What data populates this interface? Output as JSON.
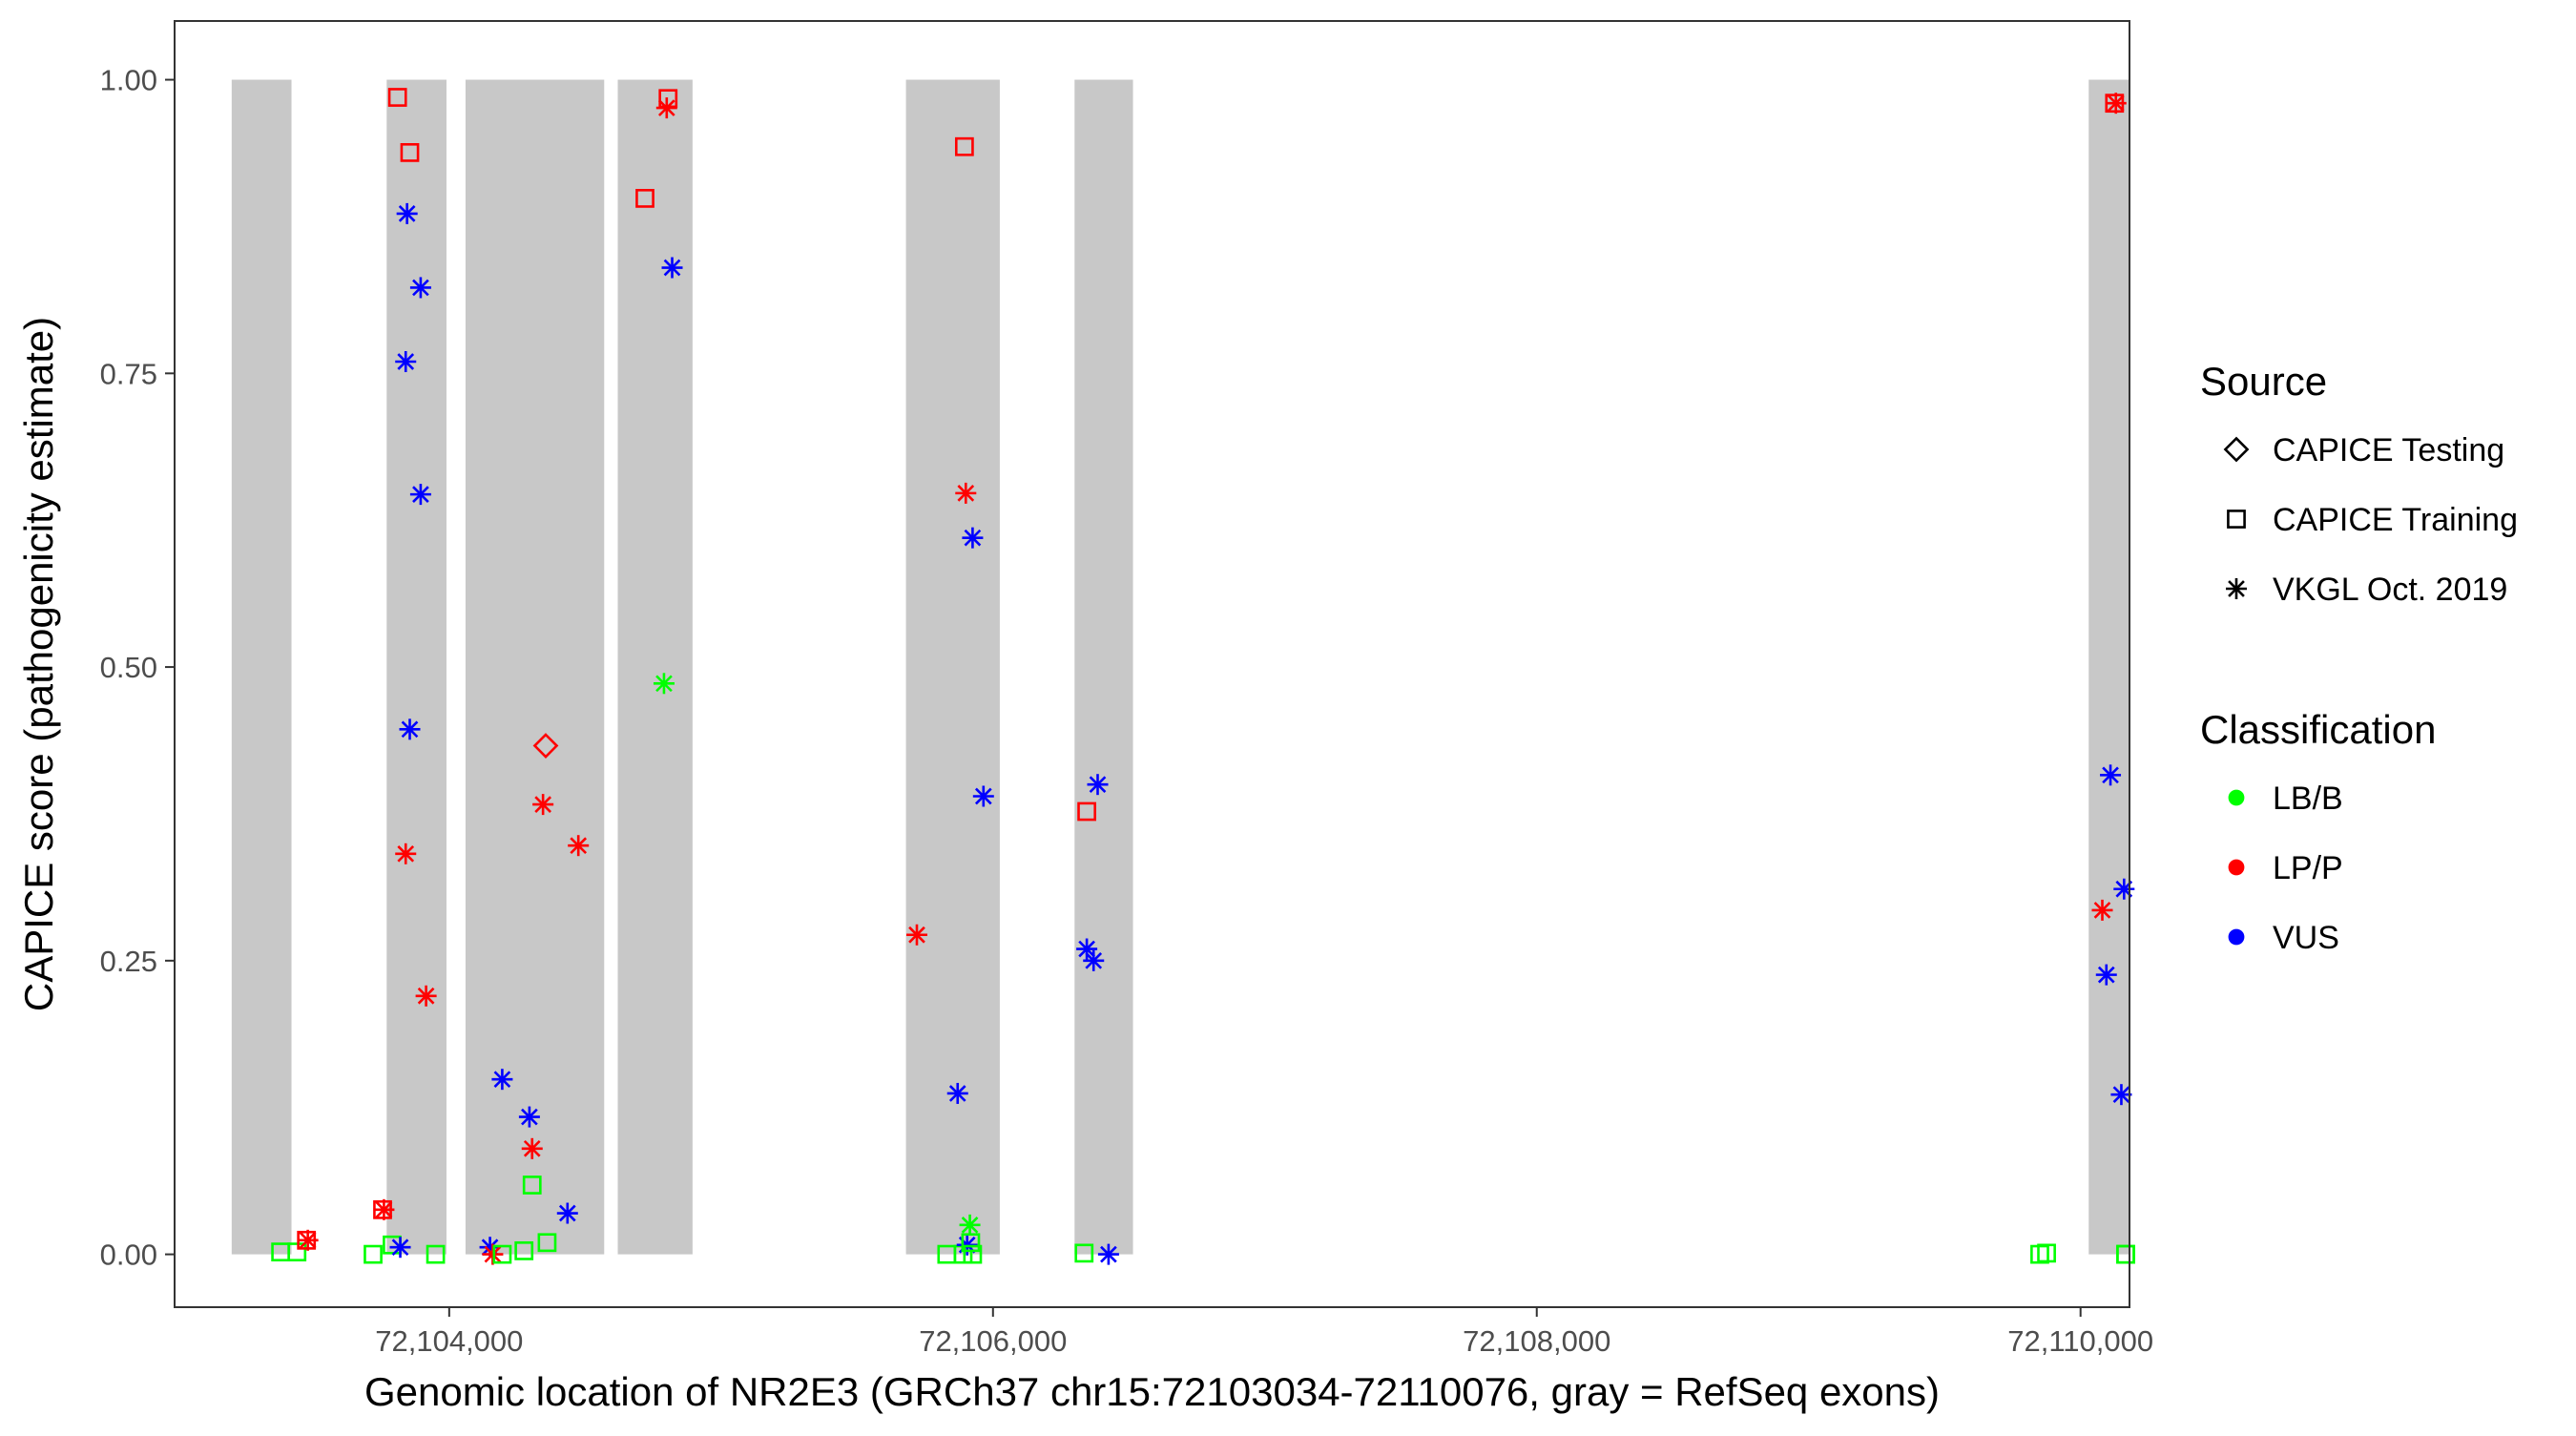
{
  "chart_data": {
    "type": "scatter",
    "xlabel": "Genomic location of NR2E3 (GRCh37 chr15:72103034-72110076, gray = RefSeq exons)",
    "ylabel": "CAPICE score (pathogenicity estimate)",
    "xlim": [
      72102990,
      72110180
    ],
    "ylim": [
      -0.045,
      1.05
    ],
    "x_ticks": [
      72104000,
      72106000,
      72108000,
      72110000
    ],
    "x_tick_labels": [
      "72,104,000",
      "72,106,000",
      "72,108,000",
      "72,110,000"
    ],
    "y_ticks": [
      0,
      0.25,
      0.5,
      0.75,
      1.0
    ],
    "y_tick_labels": [
      "0.00",
      "0.25",
      "0.50",
      "0.75",
      "1.00"
    ],
    "grid": false,
    "background_bands": [
      {
        "x_start": 72103200,
        "x_end": 72103420
      },
      {
        "x_start": 72103770,
        "x_end": 72103990
      },
      {
        "x_start": 72104060,
        "x_end": 72104570
      },
      {
        "x_start": 72104620,
        "x_end": 72104895
      },
      {
        "x_start": 72105680,
        "x_end": 72106025
      },
      {
        "x_start": 72106300,
        "x_end": 72106515
      },
      {
        "x_start": 72110030,
        "x_end": 72110270
      }
    ],
    "band_y_range": [
      0,
      1.0
    ],
    "band_color": "#c8c8c8",
    "legends": [
      {
        "title": "Source",
        "entries": [
          {
            "label": "CAPICE Testing",
            "shape": "diamond"
          },
          {
            "label": "CAPICE Training",
            "shape": "square"
          },
          {
            "label": "VKGL Oct. 2019",
            "shape": "asterisk"
          }
        ]
      },
      {
        "title": "Classification",
        "entries": [
          {
            "label": "LB/B",
            "color": "#00ff00"
          },
          {
            "label": "LP/P",
            "color": "#ff0000"
          },
          {
            "label": "VUS",
            "color": "#0000ff"
          }
        ]
      }
    ],
    "legend_position": "right",
    "class_colors": {
      "LB/B": "#00ff00",
      "LP/P": "#ff0000",
      "VUS": "#0000ff"
    },
    "points": [
      {
        "x": 72103380,
        "y": 0.002,
        "shape": "square",
        "cls": "LB/B"
      },
      {
        "x": 72103440,
        "y": 0.002,
        "shape": "square",
        "cls": "LB/B"
      },
      {
        "x": 72103480,
        "y": 0.012,
        "shape": "asterisk",
        "cls": "LP/P"
      },
      {
        "x": 72103475,
        "y": 0.012,
        "shape": "square",
        "cls": "LP/P"
      },
      {
        "x": 72103720,
        "y": 0.0,
        "shape": "square",
        "cls": "LB/B"
      },
      {
        "x": 72103755,
        "y": 0.038,
        "shape": "square",
        "cls": "LP/P"
      },
      {
        "x": 72103760,
        "y": 0.038,
        "shape": "asterisk",
        "cls": "LP/P"
      },
      {
        "x": 72103790,
        "y": 0.008,
        "shape": "square",
        "cls": "LB/B"
      },
      {
        "x": 72103810,
        "y": 0.985,
        "shape": "square",
        "cls": "LP/P"
      },
      {
        "x": 72103820,
        "y": 0.006,
        "shape": "asterisk",
        "cls": "VUS"
      },
      {
        "x": 72103855,
        "y": 0.938,
        "shape": "square",
        "cls": "LP/P"
      },
      {
        "x": 72103845,
        "y": 0.886,
        "shape": "asterisk",
        "cls": "VUS"
      },
      {
        "x": 72103895,
        "y": 0.823,
        "shape": "asterisk",
        "cls": "VUS"
      },
      {
        "x": 72103840,
        "y": 0.76,
        "shape": "asterisk",
        "cls": "VUS"
      },
      {
        "x": 72103895,
        "y": 0.647,
        "shape": "asterisk",
        "cls": "VUS"
      },
      {
        "x": 72103855,
        "y": 0.447,
        "shape": "asterisk",
        "cls": "VUS"
      },
      {
        "x": 72103840,
        "y": 0.341,
        "shape": "asterisk",
        "cls": "LP/P"
      },
      {
        "x": 72103915,
        "y": 0.22,
        "shape": "asterisk",
        "cls": "LP/P"
      },
      {
        "x": 72103950,
        "y": 0.0,
        "shape": "square",
        "cls": "LB/B"
      },
      {
        "x": 72104150,
        "y": 0.006,
        "shape": "asterisk",
        "cls": "VUS"
      },
      {
        "x": 72104160,
        "y": 0.0,
        "shape": "asterisk",
        "cls": "LP/P"
      },
      {
        "x": 72104195,
        "y": 0.0,
        "shape": "square",
        "cls": "LB/B"
      },
      {
        "x": 72104195,
        "y": 0.149,
        "shape": "asterisk",
        "cls": "VUS"
      },
      {
        "x": 72104275,
        "y": 0.003,
        "shape": "square",
        "cls": "LB/B"
      },
      {
        "x": 72104295,
        "y": 0.117,
        "shape": "asterisk",
        "cls": "VUS"
      },
      {
        "x": 72104305,
        "y": 0.09,
        "shape": "asterisk",
        "cls": "LP/P"
      },
      {
        "x": 72104305,
        "y": 0.059,
        "shape": "square",
        "cls": "LB/B"
      },
      {
        "x": 72104345,
        "y": 0.383,
        "shape": "asterisk",
        "cls": "LP/P"
      },
      {
        "x": 72104355,
        "y": 0.433,
        "shape": "diamond",
        "cls": "LP/P"
      },
      {
        "x": 72104360,
        "y": 0.01,
        "shape": "square",
        "cls": "LB/B"
      },
      {
        "x": 72104435,
        "y": 0.035,
        "shape": "asterisk",
        "cls": "VUS"
      },
      {
        "x": 72104475,
        "y": 0.348,
        "shape": "asterisk",
        "cls": "LP/P"
      },
      {
        "x": 72104720,
        "y": 0.899,
        "shape": "square",
        "cls": "LP/P"
      },
      {
        "x": 72104790,
        "y": 0.486,
        "shape": "asterisk",
        "cls": "LB/B"
      },
      {
        "x": 72104800,
        "y": 0.976,
        "shape": "asterisk",
        "cls": "LP/P"
      },
      {
        "x": 72104805,
        "y": 0.984,
        "shape": "square",
        "cls": "LP/P"
      },
      {
        "x": 72104820,
        "y": 0.84,
        "shape": "asterisk",
        "cls": "VUS"
      },
      {
        "x": 72105720,
        "y": 0.272,
        "shape": "asterisk",
        "cls": "LP/P"
      },
      {
        "x": 72105830,
        "y": 0.0,
        "shape": "square",
        "cls": "LB/B"
      },
      {
        "x": 72105870,
        "y": 0.137,
        "shape": "asterisk",
        "cls": "VUS"
      },
      {
        "x": 72105890,
        "y": 0.0,
        "shape": "square",
        "cls": "LB/B"
      },
      {
        "x": 72105895,
        "y": 0.943,
        "shape": "square",
        "cls": "LP/P"
      },
      {
        "x": 72105900,
        "y": 0.648,
        "shape": "asterisk",
        "cls": "LP/P"
      },
      {
        "x": 72105905,
        "y": 0.008,
        "shape": "asterisk",
        "cls": "VUS"
      },
      {
        "x": 72105915,
        "y": 0.025,
        "shape": "asterisk",
        "cls": "LB/B"
      },
      {
        "x": 72105918,
        "y": 0.01,
        "shape": "square",
        "cls": "LB/B"
      },
      {
        "x": 72105925,
        "y": 0.0,
        "shape": "square",
        "cls": "LB/B"
      },
      {
        "x": 72105925,
        "y": 0.61,
        "shape": "asterisk",
        "cls": "VUS"
      },
      {
        "x": 72105965,
        "y": 0.39,
        "shape": "asterisk",
        "cls": "VUS"
      },
      {
        "x": 72106335,
        "y": 0.001,
        "shape": "square",
        "cls": "LB/B"
      },
      {
        "x": 72106345,
        "y": 0.377,
        "shape": "square",
        "cls": "LP/P"
      },
      {
        "x": 72106345,
        "y": 0.26,
        "shape": "asterisk",
        "cls": "VUS"
      },
      {
        "x": 72106370,
        "y": 0.25,
        "shape": "asterisk",
        "cls": "VUS"
      },
      {
        "x": 72106385,
        "y": 0.4,
        "shape": "asterisk",
        "cls": "VUS"
      },
      {
        "x": 72106425,
        "y": 0.0,
        "shape": "asterisk",
        "cls": "VUS"
      },
      {
        "x": 72109850,
        "y": 0.0,
        "shape": "square",
        "cls": "LB/B"
      },
      {
        "x": 72109875,
        "y": 0.001,
        "shape": "square",
        "cls": "LB/B"
      },
      {
        "x": 72110080,
        "y": 0.293,
        "shape": "asterisk",
        "cls": "LP/P"
      },
      {
        "x": 72110095,
        "y": 0.238,
        "shape": "asterisk",
        "cls": "VUS"
      },
      {
        "x": 72110110,
        "y": 0.408,
        "shape": "asterisk",
        "cls": "VUS"
      },
      {
        "x": 72110125,
        "y": 0.98,
        "shape": "square",
        "cls": "LP/P"
      },
      {
        "x": 72110130,
        "y": 0.98,
        "shape": "asterisk",
        "cls": "LP/P"
      },
      {
        "x": 72110150,
        "y": 0.136,
        "shape": "asterisk",
        "cls": "VUS"
      },
      {
        "x": 72110160,
        "y": 0.311,
        "shape": "asterisk",
        "cls": "VUS"
      },
      {
        "x": 72110170,
        "y": 0.0,
        "shape": "square",
        "cls": "LB/B"
      },
      {
        "x": 72110180,
        "y": 0.0,
        "shape": "square",
        "cls": "LB/B"
      }
    ]
  }
}
